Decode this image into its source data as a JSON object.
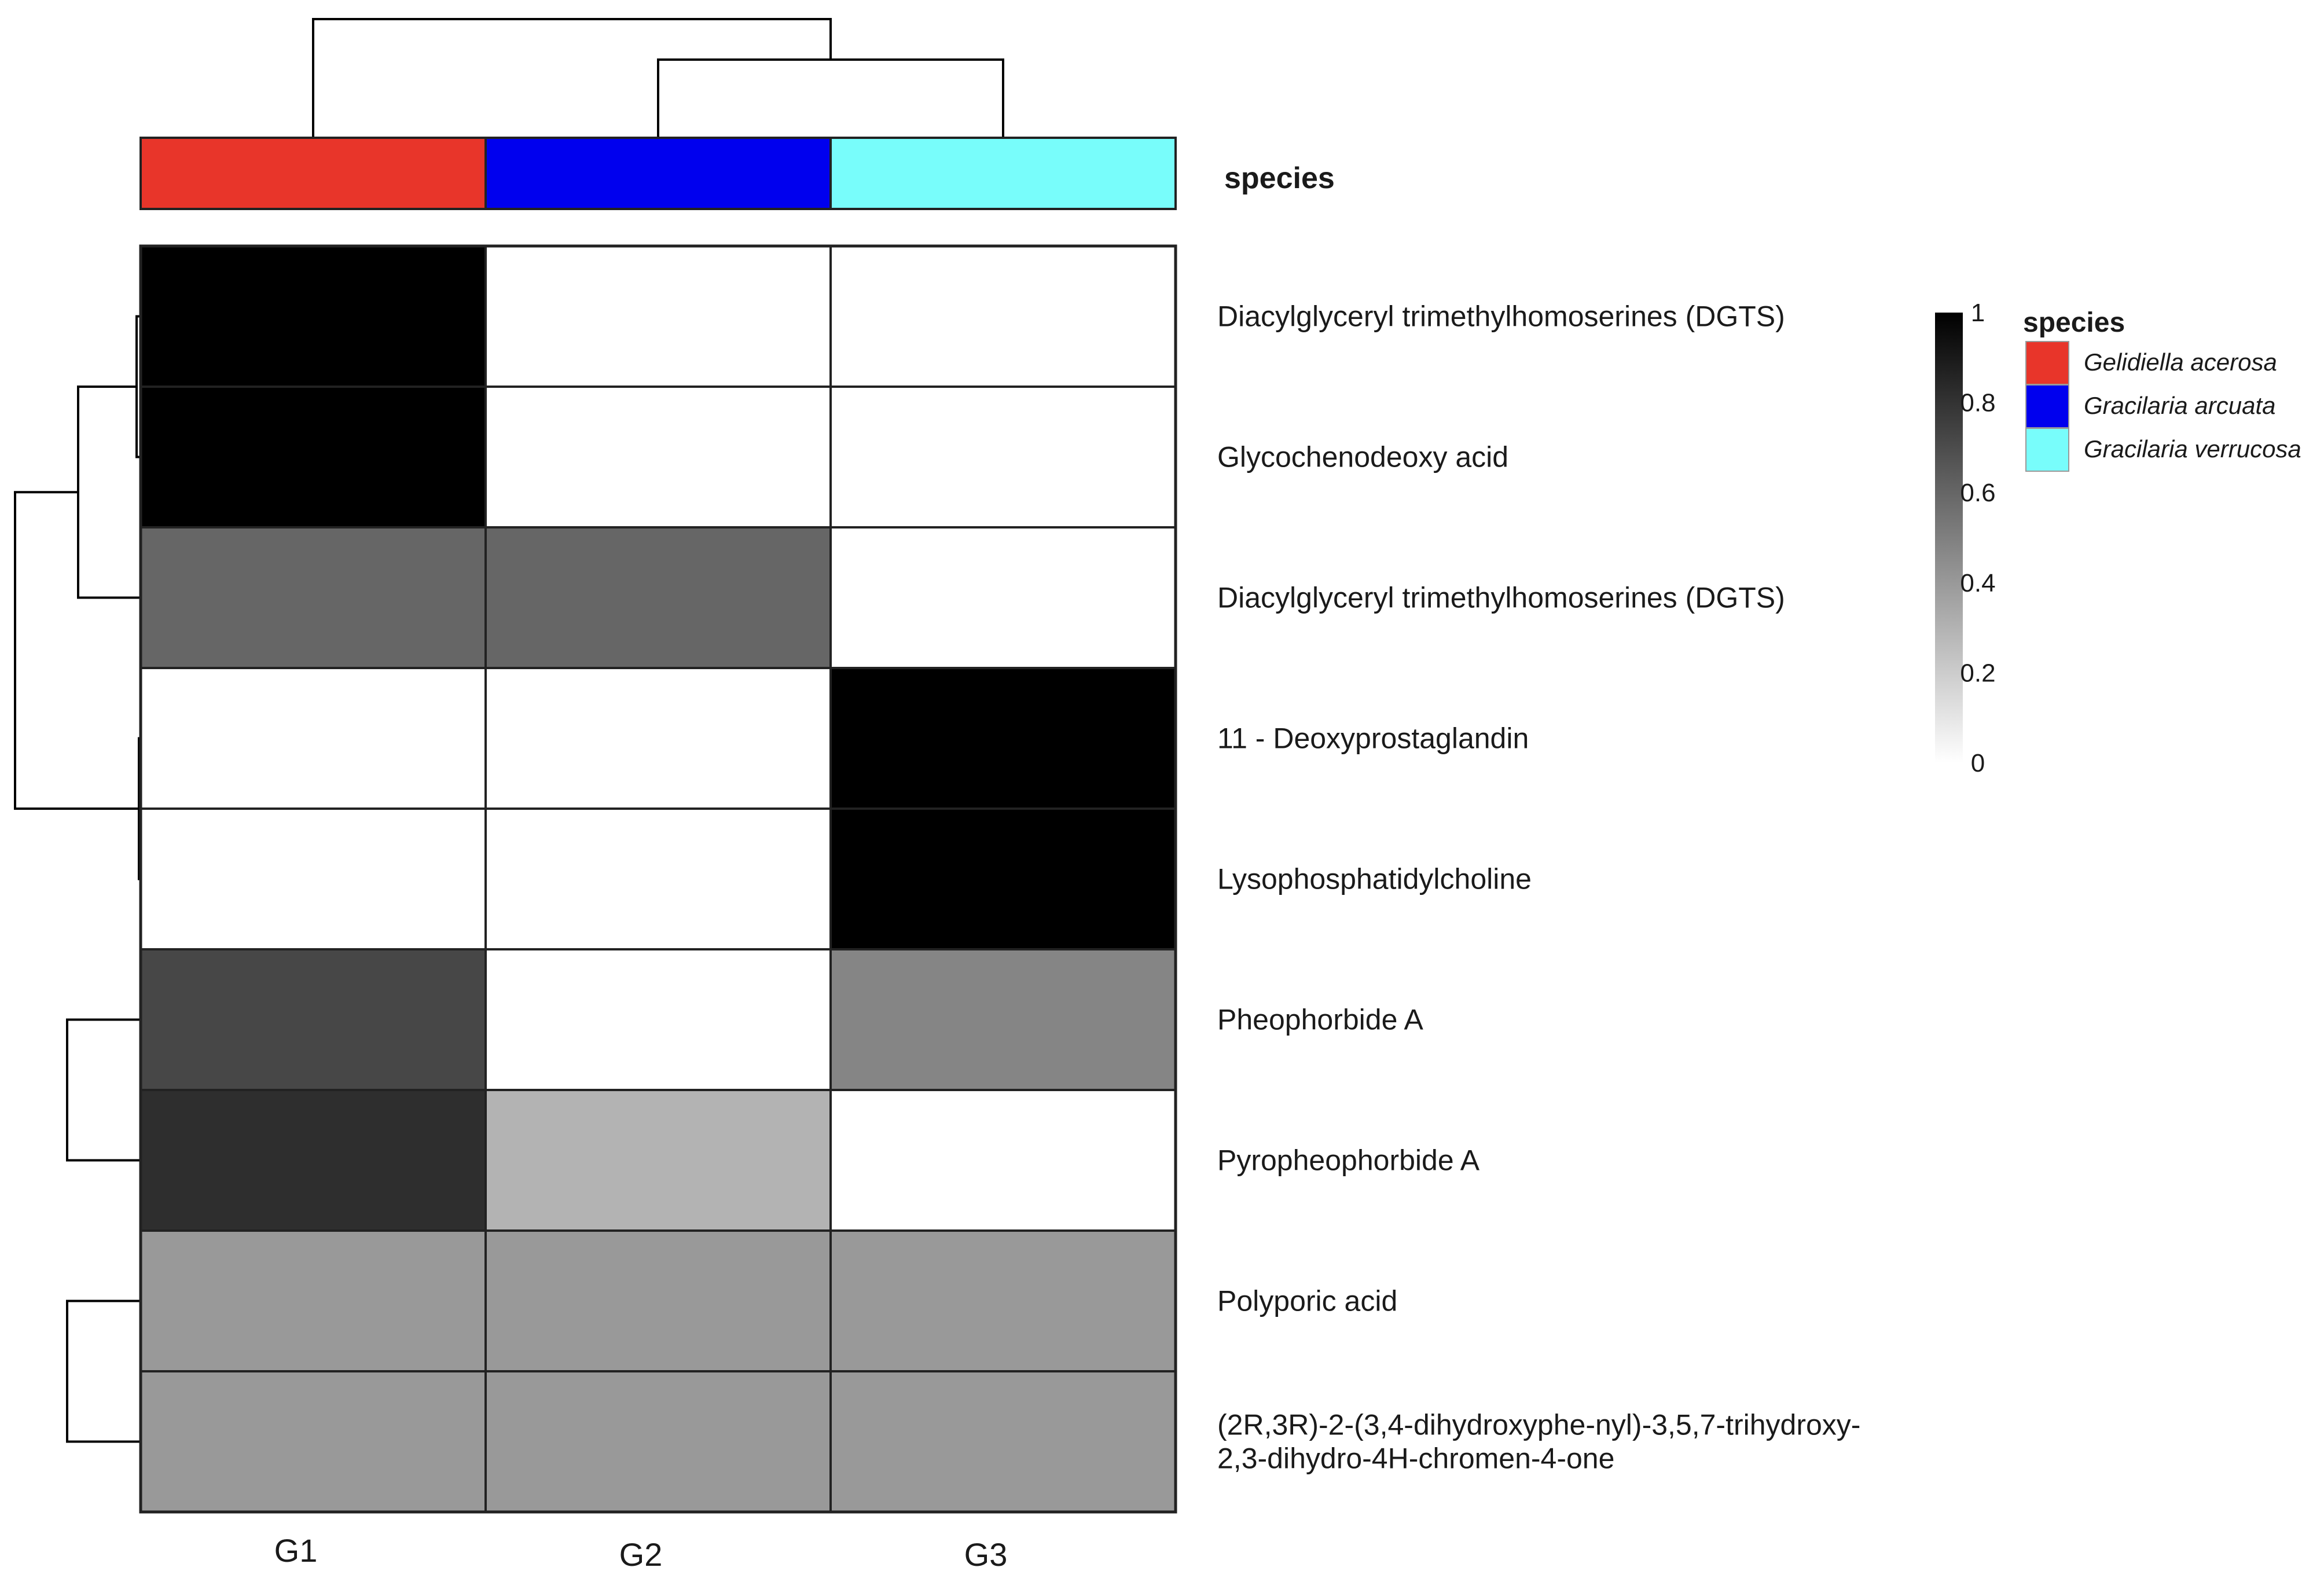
{
  "chart_data": {
    "type": "heatmap",
    "annotation_title": "species",
    "columns": [
      "G1",
      "G2",
      "G3"
    ],
    "column_species": [
      "Gelidiella acerosa",
      "Gracilaria arcuata",
      "Gracilaria verrucosa"
    ],
    "rows": [
      {
        "label": [
          "Diacylglyceryl trimethylhomoserines (DGTS)"
        ],
        "values": [
          1.0,
          0.0,
          0.0
        ]
      },
      {
        "label": [
          "Glycochenodeoxy acid"
        ],
        "values": [
          1.0,
          0.0,
          0.0
        ]
      },
      {
        "label": [
          "Diacylglyceryl trimethylhomoserines (DGTS)"
        ],
        "values": [
          0.6,
          0.6,
          0.0
        ]
      },
      {
        "label": [
          "11 - Deoxyprostaglandin"
        ],
        "values": [
          0.0,
          0.0,
          1.0
        ]
      },
      {
        "label": [
          "Lysophosphatidylcholine"
        ],
        "values": [
          0.0,
          0.0,
          1.0
        ]
      },
      {
        "label": [
          "Pheophorbide A"
        ],
        "values": [
          0.72,
          0.0,
          0.48
        ]
      },
      {
        "label": [
          "Pyropheophorbide A"
        ],
        "values": [
          0.82,
          0.3,
          0.0
        ]
      },
      {
        "label": [
          "Polyporic acid"
        ],
        "values": [
          0.4,
          0.4,
          0.4
        ]
      },
      {
        "label": [
          "(2R,3R)-2-(3,4-dihydroxyphe-nyl)-3,5,7-trihydroxy-",
          "2,3-dihydro-4H-chromen-4-one"
        ],
        "values": [
          0.4,
          0.4,
          0.4
        ]
      }
    ],
    "color_scale": {
      "min": 0,
      "max": 1,
      "low_color": "#ffffff",
      "high_color": "#000000",
      "ticks": [
        0,
        0.2,
        0.4,
        0.6,
        0.8,
        1
      ],
      "tick_labels": [
        "0",
        "0.2",
        "0.4",
        "0.6",
        "0.8",
        "1"
      ]
    },
    "legend": {
      "title": "species",
      "position": "right",
      "items": [
        {
          "label": "Gelidiella acerosa",
          "color": "#e8352a"
        },
        {
          "label": "Gracilaria arcuata",
          "color": "#0000ee"
        },
        {
          "label": "Gracilaria verrucosa",
          "color": "#78fdfb"
        }
      ]
    },
    "row_dendrogram_side": "left",
    "column_dendrogram_side": "top"
  }
}
